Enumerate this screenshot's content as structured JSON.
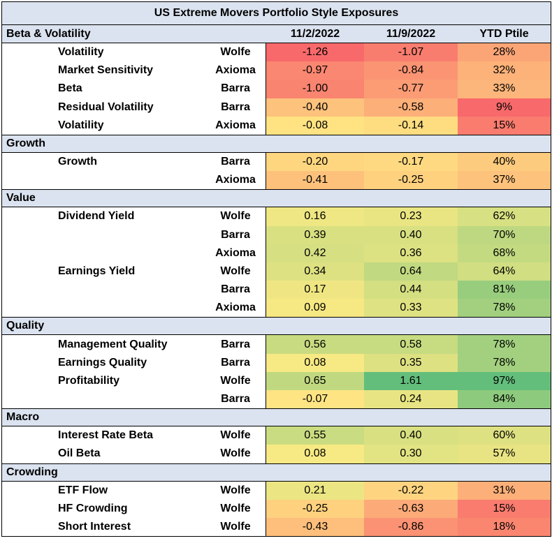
{
  "chart_data": {
    "type": "table",
    "title": "US Extreme Movers Portfolio Style Exposures",
    "columns": [
      "11/2/2022",
      "11/9/2022",
      "YTD Ptile"
    ],
    "sections": [
      {
        "name": "Beta & Volatility",
        "rows": [
          {
            "metric": "Volatility",
            "source": "Wolfe",
            "v1": -1.26,
            "v2": -1.07,
            "ptile": 28,
            "v1_text": "-1.26",
            "v2_text": "-1.07",
            "ptile_text": "28%"
          },
          {
            "metric": "Market Sensitivity",
            "source": "Axioma",
            "v1": -0.97,
            "v2": -0.84,
            "ptile": 32,
            "v1_text": "-0.97",
            "v2_text": "-0.84",
            "ptile_text": "32%"
          },
          {
            "metric": "Beta",
            "source": "Barra",
            "v1": -1.0,
            "v2": -0.77,
            "ptile": 33,
            "v1_text": "-1.00",
            "v2_text": "-0.77",
            "ptile_text": "33%"
          },
          {
            "metric": "Residual Volatility",
            "source": "Barra",
            "v1": -0.4,
            "v2": -0.58,
            "ptile": 9,
            "v1_text": "-0.40",
            "v2_text": "-0.58",
            "ptile_text": "9%"
          },
          {
            "metric": "Volatility",
            "source": "Axioma",
            "v1": -0.08,
            "v2": -0.14,
            "ptile": 15,
            "v1_text": "-0.08",
            "v2_text": "-0.14",
            "ptile_text": "15%"
          }
        ]
      },
      {
        "name": "Growth",
        "rows": [
          {
            "metric": "Growth",
            "source": "Barra",
            "v1": -0.2,
            "v2": -0.17,
            "ptile": 40,
            "v1_text": "-0.20",
            "v2_text": "-0.17",
            "ptile_text": "40%"
          },
          {
            "metric": "",
            "source": "Axioma",
            "v1": -0.41,
            "v2": -0.25,
            "ptile": 37,
            "v1_text": "-0.41",
            "v2_text": "-0.25",
            "ptile_text": "37%"
          }
        ]
      },
      {
        "name": "Value",
        "rows": [
          {
            "metric": "Dividend Yield",
            "source": "Wolfe",
            "v1": 0.16,
            "v2": 0.23,
            "ptile": 62,
            "v1_text": "0.16",
            "v2_text": "0.23",
            "ptile_text": "62%"
          },
          {
            "metric": "",
            "source": "Barra",
            "v1": 0.39,
            "v2": 0.4,
            "ptile": 70,
            "v1_text": "0.39",
            "v2_text": "0.40",
            "ptile_text": "70%"
          },
          {
            "metric": "",
            "source": "Axioma",
            "v1": 0.42,
            "v2": 0.36,
            "ptile": 68,
            "v1_text": "0.42",
            "v2_text": "0.36",
            "ptile_text": "68%"
          },
          {
            "metric": "Earnings Yield",
            "source": "Wolfe",
            "v1": 0.34,
            "v2": 0.64,
            "ptile": 64,
            "v1_text": "0.34",
            "v2_text": "0.64",
            "ptile_text": "64%"
          },
          {
            "metric": "",
            "source": "Barra",
            "v1": 0.17,
            "v2": 0.44,
            "ptile": 81,
            "v1_text": "0.17",
            "v2_text": "0.44",
            "ptile_text": "81%"
          },
          {
            "metric": "",
            "source": "Axioma",
            "v1": 0.09,
            "v2": 0.33,
            "ptile": 78,
            "v1_text": "0.09",
            "v2_text": "0.33",
            "ptile_text": "78%"
          }
        ]
      },
      {
        "name": "Quality",
        "rows": [
          {
            "metric": "Management Quality",
            "source": "Barra",
            "v1": 0.56,
            "v2": 0.58,
            "ptile": 78,
            "v1_text": "0.56",
            "v2_text": "0.58",
            "ptile_text": "78%"
          },
          {
            "metric": "Earnings Quality",
            "source": "Barra",
            "v1": 0.08,
            "v2": 0.35,
            "ptile": 78,
            "v1_text": "0.08",
            "v2_text": "0.35",
            "ptile_text": "78%"
          },
          {
            "metric": "Profitability",
            "source": "Wolfe",
            "v1": 0.65,
            "v2": 1.61,
            "ptile": 97,
            "v1_text": "0.65",
            "v2_text": "1.61",
            "ptile_text": "97%"
          },
          {
            "metric": "",
            "source": "Barra",
            "v1": -0.07,
            "v2": 0.24,
            "ptile": 84,
            "v1_text": "-0.07",
            "v2_text": "0.24",
            "ptile_text": "84%"
          }
        ]
      },
      {
        "name": "Macro",
        "rows": [
          {
            "metric": "Interest Rate Beta",
            "source": "Wolfe",
            "v1": 0.55,
            "v2": 0.4,
            "ptile": 60,
            "v1_text": "0.55",
            "v2_text": "0.40",
            "ptile_text": "60%"
          },
          {
            "metric": "Oil Beta",
            "source": "Wolfe",
            "v1": 0.08,
            "v2": 0.3,
            "ptile": 57,
            "v1_text": "0.08",
            "v2_text": "0.30",
            "ptile_text": "57%"
          }
        ]
      },
      {
        "name": "Crowding",
        "rows": [
          {
            "metric": "ETF Flow",
            "source": "Wolfe",
            "v1": 0.21,
            "v2": -0.22,
            "ptile": 31,
            "v1_text": "0.21",
            "v2_text": "-0.22",
            "ptile_text": "31%"
          },
          {
            "metric": "HF Crowding",
            "source": "Wolfe",
            "v1": -0.25,
            "v2": -0.63,
            "ptile": 15,
            "v1_text": "-0.25",
            "v2_text": "-0.63",
            "ptile_text": "15%"
          },
          {
            "metric": "Short Interest",
            "source": "Wolfe",
            "v1": -0.43,
            "v2": -0.86,
            "ptile": 18,
            "v1_text": "-0.43",
            "v2_text": "-0.86",
            "ptile_text": "18%"
          }
        ]
      }
    ],
    "colors": {
      "header_bg": "#dbe3f0",
      "red": "#f8696b",
      "yellow": "#ffeb84",
      "green": "#63be7b"
    }
  }
}
